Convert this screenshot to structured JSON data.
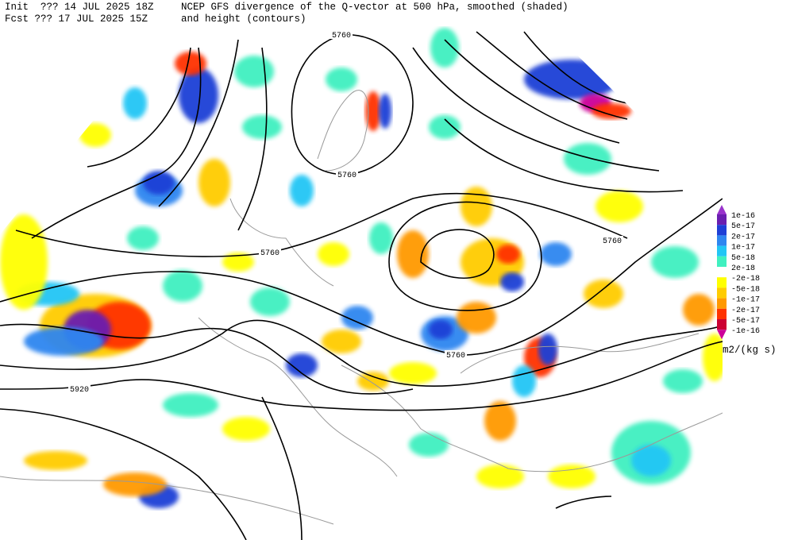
{
  "header": {
    "init": "Init  ??? 14 JUL 2025 18Z",
    "fcst": "Fcst ??? 17 JUL 2025 15Z",
    "title": "NCEP GFS divergence of the Q-vector at 500 hPa, smoothed (shaded)",
    "subtitle": "and height (contours)"
  },
  "contour_labels": [
    "5760",
    "5760",
    "5760",
    "5760",
    "5760",
    "5920"
  ],
  "colorbar": {
    "labels": [
      "1e-16",
      "5e-17",
      "2e-17",
      "1e-17",
      "5e-18",
      "2e-18",
      "-2e-18",
      "-5e-18",
      "-1e-17",
      "-2e-17",
      "-5e-17",
      "-1e-16"
    ],
    "colors": [
      "#9933cc",
      "#6a1fb0",
      "#1f3fd6",
      "#2f86f0",
      "#22c6f5",
      "#40f0c0",
      "#ffffff",
      "#ffff00",
      "#ffcc00",
      "#ff9900",
      "#ff3300",
      "#cc0033",
      "#cc0099"
    ],
    "units": "m2/(kg s)"
  }
}
